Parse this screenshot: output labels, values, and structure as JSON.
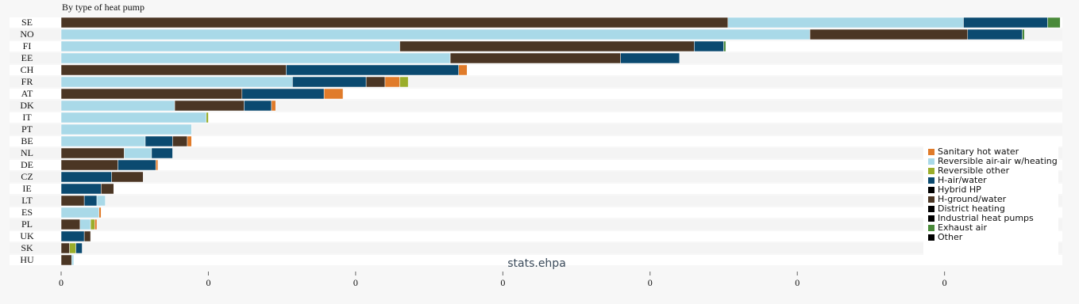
{
  "chart_data": {
    "type": "stacked-barh",
    "title": "By type of heat pump",
    "watermark": "stats.ehpa",
    "categories": [
      "SE",
      "NO",
      "FI",
      "EE",
      "CH",
      "FR",
      "AT",
      "DK",
      "IT",
      "PT",
      "BE",
      "NL",
      "DE",
      "CZ",
      "IE",
      "LT",
      "ES",
      "PL",
      "UK",
      "SK",
      "HU"
    ],
    "series": [
      {
        "name": "Sanitary hot water",
        "color": "#e07b2a",
        "values": [
          0,
          0,
          0,
          0,
          0.004,
          0.007,
          0.009,
          0.002,
          0,
          0,
          0.002,
          0,
          0.001,
          0,
          0,
          0,
          0.001,
          0.001,
          0,
          0,
          0
        ]
      },
      {
        "name": "Reversible air-air w/heating",
        "color": "#a9d9e8",
        "values": [
          0.112,
          0.356,
          0.161,
          0.185,
          0,
          0.11,
          0,
          0.054,
          0.069,
          0.062,
          0.04,
          0.013,
          0,
          0,
          0,
          0.004,
          0.018,
          0.005,
          0,
          0,
          0.001
        ]
      },
      {
        "name": "Reversible other",
        "color": "#9aad2a",
        "values": [
          0,
          0,
          0,
          0,
          0,
          0.004,
          0,
          0,
          0.001,
          0,
          0,
          0,
          0,
          0,
          0,
          0,
          0,
          0.002,
          0,
          0.003,
          0
        ]
      },
      {
        "name": "H-air/water",
        "color": "#0b4a70",
        "values": [
          0.04,
          0.026,
          0.014,
          0.028,
          0.082,
          0.035,
          0.039,
          0.013,
          0,
          0,
          0.013,
          0.01,
          0.018,
          0.024,
          0.019,
          0.006,
          0,
          0,
          0.011,
          0.003,
          0
        ]
      },
      {
        "name": "Hybrid HP",
        "color": "#000000",
        "values": [
          0,
          0,
          0,
          0,
          0,
          0,
          0,
          0,
          0,
          0,
          0,
          0,
          0,
          0,
          0,
          0,
          0,
          0,
          0,
          0,
          0
        ]
      },
      {
        "name": "H-ground/water",
        "color": "#4b3624",
        "values": [
          0.317,
          0.075,
          0.14,
          0.081,
          0.107,
          0.009,
          0.086,
          0.033,
          0,
          0,
          0.007,
          0.03,
          0.027,
          0.015,
          0.006,
          0.011,
          0,
          0.009,
          0.003,
          0.004,
          0.005
        ]
      },
      {
        "name": "District heating",
        "color": "#000000",
        "values": [
          0,
          0,
          0,
          0,
          0,
          0,
          0,
          0,
          0,
          0,
          0,
          0,
          0,
          0,
          0,
          0,
          0,
          0,
          0,
          0,
          0
        ]
      },
      {
        "name": "Industrial heat pumps",
        "color": "#000000",
        "values": [
          0,
          0,
          0,
          0,
          0,
          0,
          0,
          0,
          0,
          0,
          0,
          0,
          0,
          0,
          0,
          0,
          0,
          0,
          0,
          0,
          0
        ]
      },
      {
        "name": "Exhaust air",
        "color": "#4a8a3a",
        "values": [
          0.006,
          0.001,
          0.001,
          0,
          0,
          0,
          0,
          0,
          0,
          0,
          0,
          0,
          0,
          0,
          0,
          0,
          0,
          0,
          0,
          0,
          0
        ]
      },
      {
        "name": "Other",
        "color": "#000000",
        "values": [
          0,
          0,
          0,
          0,
          0,
          0,
          0,
          0,
          0,
          0,
          0,
          0,
          0,
          0,
          0,
          0,
          0,
          0,
          0,
          0,
          0
        ]
      }
    ],
    "xlim": [
      0,
      0.476
    ],
    "xticks": [
      {
        "value": 0,
        "label": "0"
      },
      {
        "value": 0.07,
        "label": "0"
      },
      {
        "value": 0.14,
        "label": "0"
      },
      {
        "value": 0.21,
        "label": "0"
      },
      {
        "value": 0.28,
        "label": "0"
      },
      {
        "value": 0.35,
        "label": "0"
      },
      {
        "value": 0.42,
        "label": "0"
      }
    ]
  }
}
